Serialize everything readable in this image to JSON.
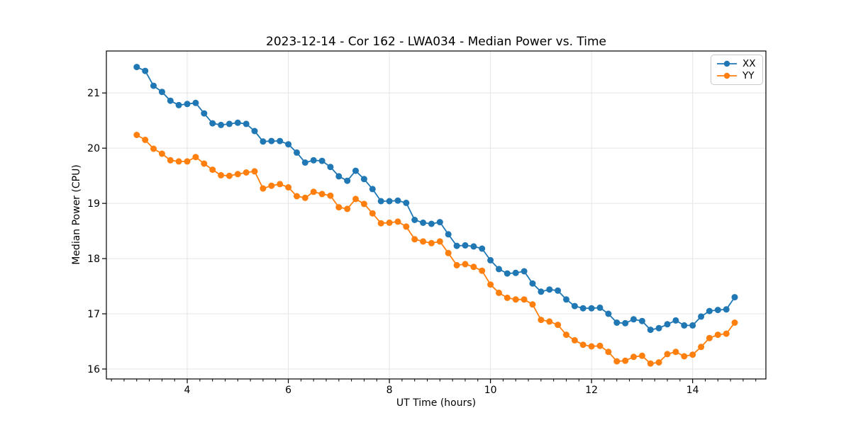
{
  "figure": {
    "background": "#ffffff"
  },
  "chart_data": {
    "type": "line",
    "title": "2023-12-14 - Cor 162 - LWA034 - Median Power vs. Time",
    "xlabel": "UT Time (hours)",
    "ylabel": "Median Power (CPU)",
    "xlim": [
      2.4,
      15.45
    ],
    "ylim": [
      15.82,
      21.76
    ],
    "x_ticks": [
      4,
      6,
      8,
      10,
      12,
      14
    ],
    "y_ticks": [
      16,
      17,
      18,
      19,
      20,
      21
    ],
    "x_minor_tick_step": 0.25,
    "grid": true,
    "grid_color": "#e5e5e5",
    "spine_color": "#000000",
    "legend_position": "upper right",
    "x": [
      3.0,
      3.167,
      3.333,
      3.5,
      3.667,
      3.833,
      4.0,
      4.167,
      4.333,
      4.5,
      4.667,
      4.833,
      5.0,
      5.167,
      5.333,
      5.5,
      5.667,
      5.833,
      6.0,
      6.167,
      6.333,
      6.5,
      6.667,
      6.833,
      7.0,
      7.167,
      7.333,
      7.5,
      7.667,
      7.833,
      8.0,
      8.167,
      8.333,
      8.5,
      8.667,
      8.833,
      9.0,
      9.167,
      9.333,
      9.5,
      9.667,
      9.833,
      10.0,
      10.167,
      10.333,
      10.5,
      10.667,
      10.833,
      11.0,
      11.167,
      11.333,
      11.5,
      11.667,
      11.833,
      12.0,
      12.167,
      12.333,
      12.5,
      12.667,
      12.833,
      13.0,
      13.167,
      13.333,
      13.5,
      13.667,
      13.833,
      14.0,
      14.167,
      14.333,
      14.5,
      14.667,
      14.833
    ],
    "series": [
      {
        "name": "XX",
        "color": "#1f77b4",
        "values": [
          21.47,
          21.4,
          21.13,
          21.02,
          20.86,
          20.78,
          20.8,
          20.82,
          20.63,
          20.45,
          20.42,
          20.44,
          20.46,
          20.44,
          20.31,
          20.12,
          20.13,
          20.13,
          20.07,
          19.92,
          19.74,
          19.78,
          19.77,
          19.66,
          19.49,
          19.41,
          19.59,
          19.44,
          19.26,
          19.04,
          19.04,
          19.05,
          19.01,
          18.7,
          18.65,
          18.63,
          18.66,
          18.44,
          18.23,
          18.24,
          18.22,
          18.18,
          17.97,
          17.81,
          17.73,
          17.74,
          17.77,
          17.55,
          17.4,
          17.44,
          17.42,
          17.26,
          17.14,
          17.1,
          17.1,
          17.11,
          17.0,
          16.84,
          16.83,
          16.9,
          16.87,
          16.71,
          16.74,
          16.81,
          16.88,
          16.79,
          16.79,
          16.95,
          17.05,
          17.07,
          17.08,
          17.3
        ]
      },
      {
        "name": "YY",
        "color": "#ff7f0e",
        "values": [
          20.24,
          20.15,
          19.99,
          19.9,
          19.78,
          19.76,
          19.76,
          19.84,
          19.72,
          19.61,
          19.51,
          19.5,
          19.53,
          19.56,
          19.58,
          19.27,
          19.32,
          19.35,
          19.29,
          19.13,
          19.1,
          19.21,
          19.17,
          19.14,
          18.93,
          18.9,
          19.08,
          18.99,
          18.82,
          18.64,
          18.65,
          18.67,
          18.58,
          18.35,
          18.31,
          18.28,
          18.31,
          18.1,
          17.88,
          17.9,
          17.85,
          17.78,
          17.53,
          17.38,
          17.29,
          17.26,
          17.26,
          17.17,
          16.89,
          16.86,
          16.8,
          16.62,
          16.52,
          16.44,
          16.41,
          16.42,
          16.31,
          16.14,
          16.15,
          16.22,
          16.24,
          16.1,
          16.12,
          16.27,
          16.31,
          16.23,
          16.26,
          16.4,
          16.56,
          16.62,
          16.64,
          16.84
        ]
      }
    ]
  }
}
